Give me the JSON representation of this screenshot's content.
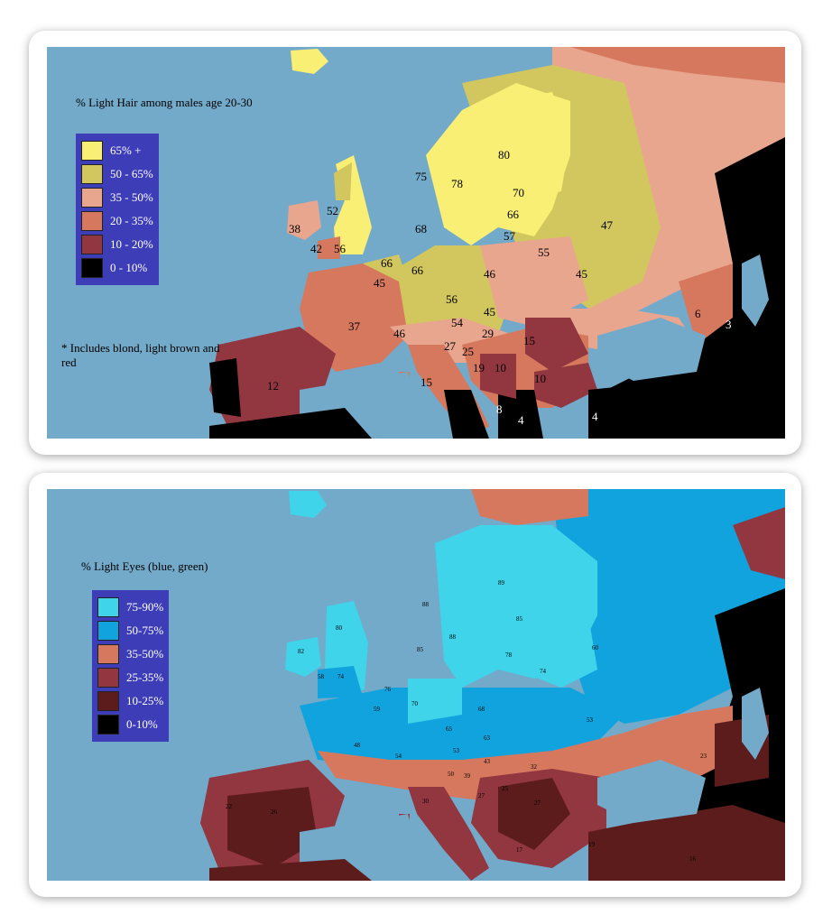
{
  "hair_map": {
    "title": "% Light Hair among males age 20-30",
    "note": "* Includes blond, light brown and red",
    "legend": [
      {
        "label": "65% +",
        "color": "#f8ef74"
      },
      {
        "label": "50 - 65%",
        "color": "#d2c65e"
      },
      {
        "label": "35 - 50%",
        "color": "#e8a68e"
      },
      {
        "label": "20 - 35%",
        "color": "#d6785e"
      },
      {
        "label": "10 - 20%",
        "color": "#923640"
      },
      {
        "label": "0 - 10%",
        "color": "#000000"
      }
    ],
    "values": [
      "80",
      "75",
      "78",
      "70",
      "66",
      "57",
      "52",
      "68",
      "38",
      "42",
      "56",
      "66",
      "66",
      "47",
      "55",
      "46",
      "45",
      "56",
      "54",
      "45",
      "37",
      "46",
      "27",
      "25",
      "29",
      "15",
      "19",
      "10",
      "10",
      "9",
      "12",
      "15",
      "8",
      "4",
      "4",
      "6",
      "3",
      "45"
    ]
  },
  "eyes_map": {
    "title": "% Light Eyes (blue, green)",
    "legend": [
      {
        "label": "75-90%",
        "color": "#3fd4ea"
      },
      {
        "label": "50-75%",
        "color": "#10a3dd"
      },
      {
        "label": "35-50%",
        "color": "#d6785e"
      },
      {
        "label": "25-35%",
        "color": "#923640"
      },
      {
        "label": "10-25%",
        "color": "#5c1c1c"
      },
      {
        "label": "0-10%",
        "color": "#000000"
      }
    ],
    "values": [
      "89",
      "88",
      "80",
      "85",
      "82",
      "88",
      "85",
      "78",
      "74",
      "60",
      "58",
      "74",
      "76",
      "59",
      "70",
      "68",
      "53",
      "48",
      "54",
      "65",
      "63",
      "53",
      "50",
      "39",
      "43",
      "32",
      "27",
      "25",
      "27",
      "30",
      "22",
      "26",
      "17",
      "19",
      "16",
      "23"
    ]
  }
}
